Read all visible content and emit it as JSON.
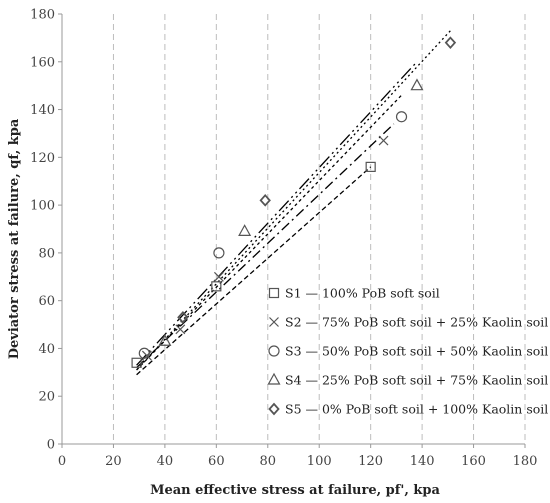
{
  "chart_data": {
    "type": "scatter",
    "title": "",
    "xlabel": "Mean effective stress at failure, pf', kpa",
    "ylabel": "Deviator stress at failure, qf, kpa",
    "xlim": [
      0,
      180
    ],
    "ylim": [
      0,
      180
    ],
    "xticks": [
      "0",
      "20",
      "40",
      "60",
      "80",
      "100",
      "120",
      "140",
      "160",
      "180"
    ],
    "yticks": [
      "0",
      "20",
      "40",
      "60",
      "80",
      "100",
      "120",
      "140",
      "160",
      "180"
    ],
    "grid": "vertical-dashed",
    "legend_position": "lower-right inside plot",
    "series": [
      {
        "name": "S1 — 100% PoB soft soil",
        "marker": "square",
        "points": [
          [
            29,
            34
          ],
          [
            60,
            66
          ],
          [
            120,
            116
          ]
        ],
        "trendline": [
          [
            29,
            29
          ],
          [
            120,
            116
          ]
        ]
      },
      {
        "name": "S2 — 75% PoB soft soil + 25% Kaolin soil",
        "marker": "x",
        "points": [
          [
            33,
            37
          ],
          [
            46,
            48
          ],
          [
            61,
            70
          ],
          [
            125,
            127
          ]
        ],
        "trendline": [
          [
            29,
            32
          ],
          [
            129,
            134
          ]
        ]
      },
      {
        "name": "S3 — 50% PoB soft soil + 50% Kaolin soil",
        "marker": "circle",
        "points": [
          [
            32,
            38
          ],
          [
            61,
            80
          ],
          [
            132,
            137
          ]
        ],
        "trendline": [
          [
            29,
            31
          ],
          [
            132,
            146
          ]
        ]
      },
      {
        "name": "S4 — 25% PoB soft soil + 75% Kaolin soil",
        "marker": "triangle",
        "points": [
          [
            40,
            43
          ],
          [
            71,
            89
          ],
          [
            138,
            150
          ]
        ],
        "trendline": [
          [
            29,
            33
          ],
          [
            138,
            160
          ]
        ]
      },
      {
        "name": "S5 — 0% PoB soft soil + 100% Kaolin soil",
        "marker": "diamond",
        "points": [
          [
            47,
            53
          ],
          [
            79,
            102
          ],
          [
            151,
            168
          ]
        ],
        "trendline": [
          [
            29,
            31
          ],
          [
            151,
            173
          ]
        ]
      }
    ],
    "colors": {
      "marker_stroke": "#555555",
      "line": "#000000",
      "grid": "#bdbdbd"
    }
  }
}
